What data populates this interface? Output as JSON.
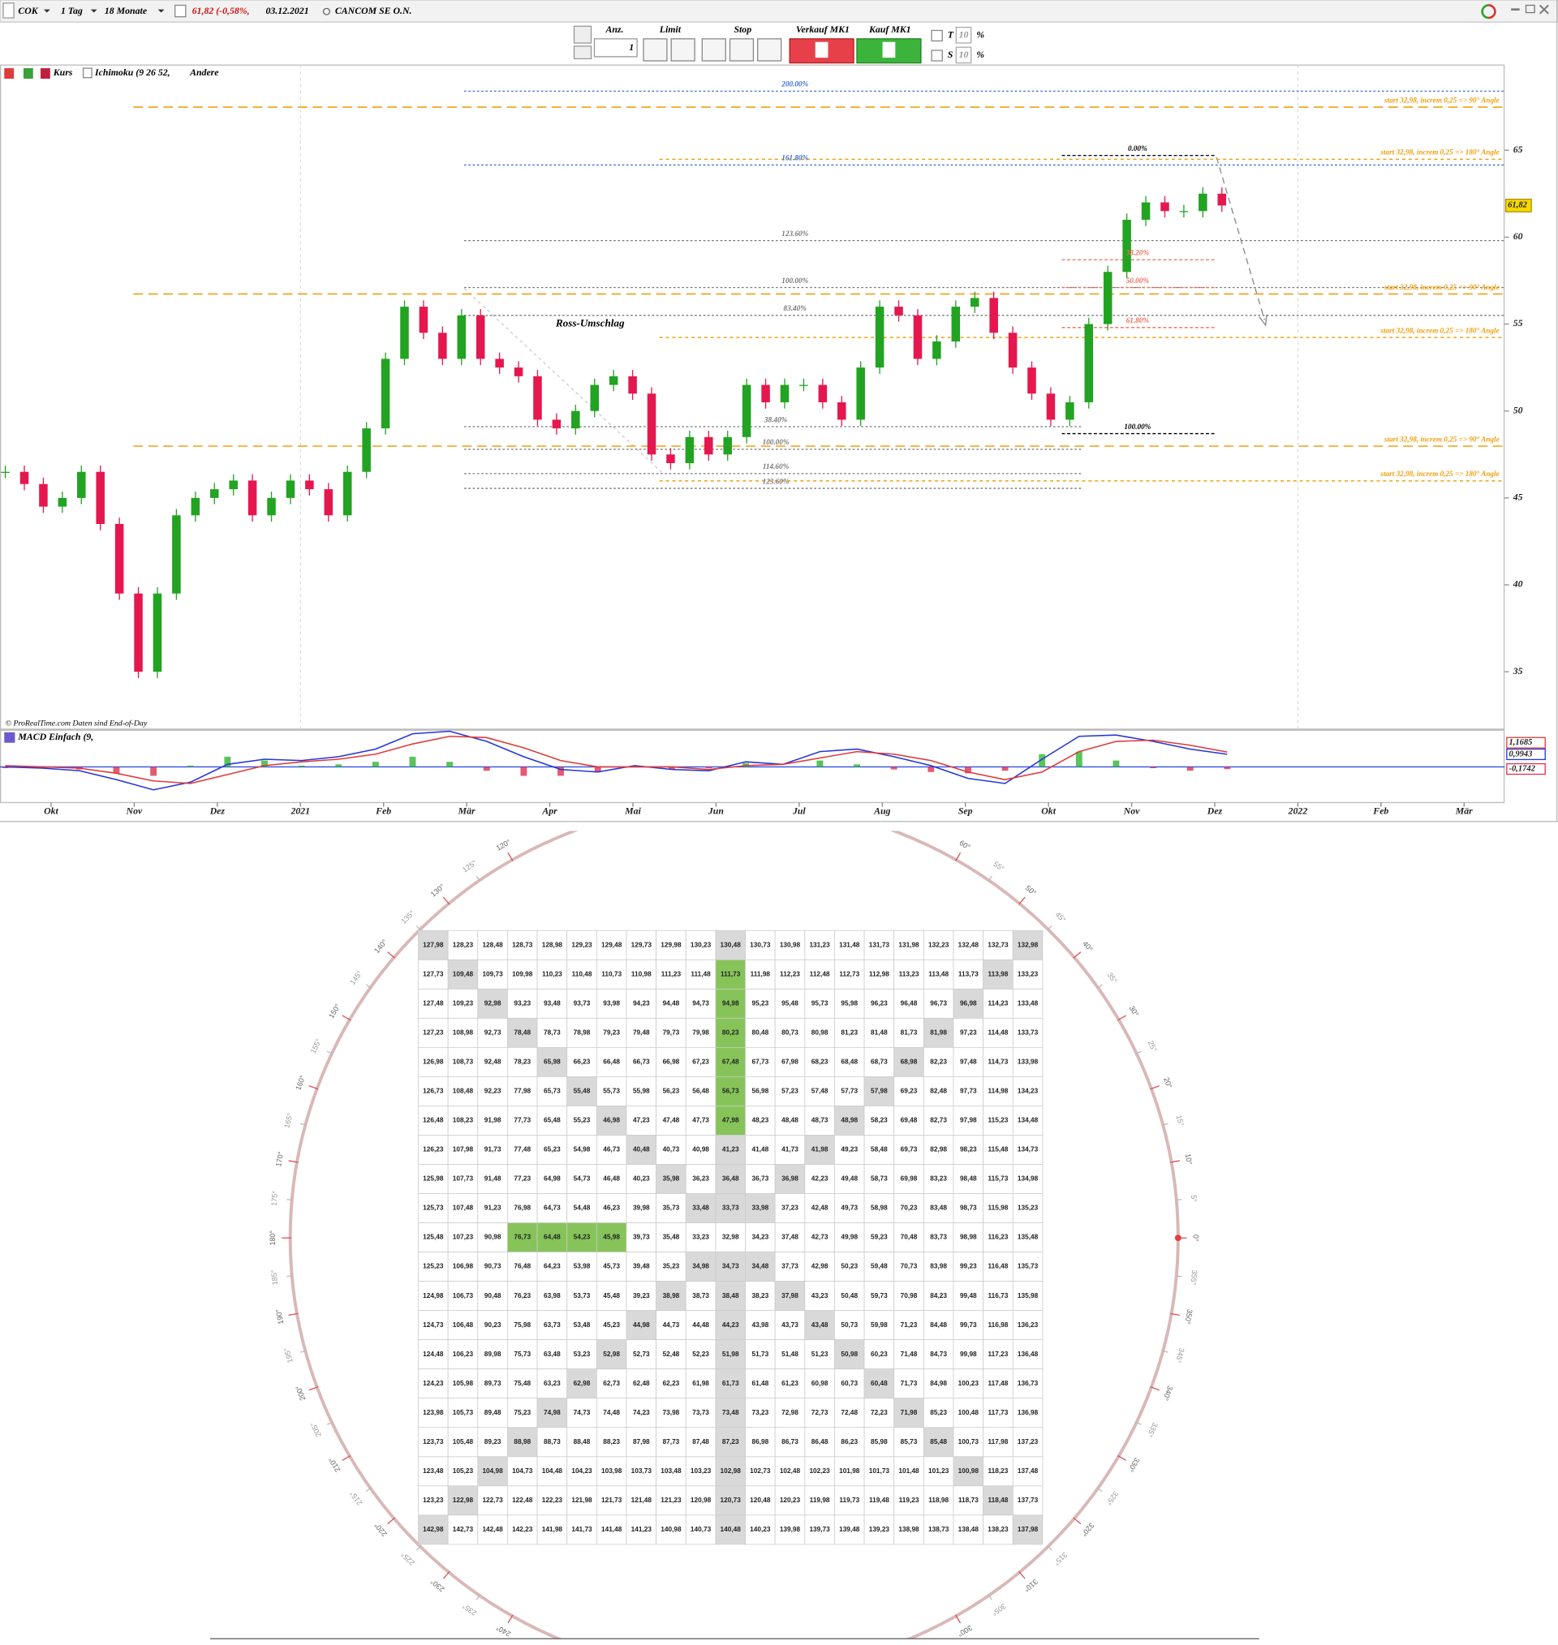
{
  "toolbar": {
    "symbol": "COK",
    "interval": "1 Tag",
    "period": "18 Monate",
    "change": "61,82 (-0,58%,",
    "date": "03.12.2021",
    "name": "CANCOM SE O.N."
  },
  "order_panel": {
    "qty_label": "Anz.",
    "qty": 1,
    "limit": "Limit",
    "stop": "Stop",
    "sell": "Verkauf MK1",
    "buy": "Kauf MK1",
    "t": "T",
    "t_value": 10,
    "t_unit": "%",
    "s": "S",
    "s_value": 10,
    "s_unit": "%"
  },
  "chart_data": [
    {
      "type": "candlestick",
      "legend": [
        "Kurs",
        "Ichimoku (9 26 52,",
        "Andere"
      ],
      "values": [
        46.5,
        45.8,
        44.5,
        45.0,
        46.5,
        43.5,
        39.5,
        35.0,
        39.5,
        44.0,
        45.0,
        45.5,
        46.0,
        44.0,
        45.0,
        46.0,
        45.5,
        44.0,
        46.5,
        49.0,
        53.0,
        56.0,
        54.5,
        53.0,
        55.5,
        53.0,
        52.5,
        52.0,
        49.5,
        49.0,
        50.0,
        51.5,
        52.0,
        51.0,
        47.5,
        47.0,
        48.5,
        47.5,
        48.5,
        51.5,
        50.5,
        51.5,
        51.5,
        50.5,
        49.5,
        52.5,
        56.0,
        55.5,
        53.0,
        54.0,
        56.0,
        56.5,
        54.5,
        52.5,
        51.0,
        49.5,
        50.5,
        55.0,
        58.0,
        61.0,
        62.0,
        61.5,
        61.5,
        62.5,
        61.82
      ],
      "up_color": "#22a322",
      "down_color": "#e5174f",
      "ylim": [
        31.7,
        69.9
      ],
      "yticks": [
        35,
        40,
        45,
        50,
        55,
        60,
        65
      ],
      "xlim": [
        "2020-09",
        "2022-03"
      ],
      "xticks": [
        {
          "value": "2020-10",
          "label": "Okt"
        },
        {
          "value": "2020-11",
          "label": "Nov"
        },
        {
          "value": "2020-12",
          "label": "Dez"
        },
        {
          "value": "2021-01",
          "label": "2021"
        },
        {
          "value": "2021-02",
          "label": "Feb"
        },
        {
          "value": "2021-03",
          "label": "Mär"
        },
        {
          "value": "2021-04",
          "label": "Apr"
        },
        {
          "value": "2021-05",
          "label": "Mai"
        },
        {
          "value": "2021-06",
          "label": "Jun"
        },
        {
          "value": "2021-07",
          "label": "Jul"
        },
        {
          "value": "2021-08",
          "label": "Aug"
        },
        {
          "value": "2021-09",
          "label": "Sep"
        },
        {
          "value": "2021-10",
          "label": "Okt"
        },
        {
          "value": "2021-11",
          "label": "Nov"
        },
        {
          "value": "2021-12",
          "label": "Dez"
        },
        {
          "value": "2022-01",
          "label": "2022"
        },
        {
          "value": "2022-02",
          "label": "Feb"
        },
        {
          "value": "2022-03",
          "label": "Mär"
        }
      ],
      "last_label": "61,82",
      "annotation": "Ross-Umschlag",
      "source": "© ProRealTime.com  Daten sind End-of-Day",
      "fib_a": [
        {
          "value": 68.4,
          "label": "200.00%",
          "color": "#3b6fd6"
        },
        {
          "value": 64.15,
          "label": "161.80%",
          "color": "#3b6fd6"
        },
        {
          "value": 59.8,
          "label": "123.60%",
          "color": "#777777"
        },
        {
          "value": 57.1,
          "label": "100.00%",
          "color": "#777777"
        },
        {
          "value": 55.5,
          "label": "83.40%",
          "color": "#777777"
        }
      ],
      "fib_b": [
        {
          "value": 49.1,
          "label": "38.40%",
          "color": "#777777"
        },
        {
          "value": 47.8,
          "label": "100.00%",
          "color": "#777777"
        },
        {
          "value": 46.4,
          "label": "114.60%",
          "color": "#777777"
        },
        {
          "value": 45.55,
          "label": "123.60%",
          "color": "#777777"
        }
      ],
      "fib_c": [
        {
          "value": 64.7,
          "label": "0.00%",
          "color": "#000000"
        },
        {
          "value": 58.7,
          "label": "38.20%",
          "color": "#e8705a"
        },
        {
          "value": 57.1,
          "label": "50.00%",
          "color": "#e8705a"
        },
        {
          "value": 54.8,
          "label": "61.80%",
          "color": "#e8705a"
        },
        {
          "value": 48.7,
          "label": "100.00%",
          "color": "#000000"
        }
      ],
      "level_color": "#f0a010",
      "gann_levels": [
        {
          "value": 67.48,
          "label": "start 32,98, increm 0,25 => 90° Angle"
        },
        {
          "value": 64.48,
          "label": "start 32,98, increm 0,25 => 180° Angle"
        },
        {
          "value": 56.73,
          "label": "start 32,98, increm 0,25 => 90° Angle"
        },
        {
          "value": 54.23,
          "label": "start 32,98, increm 0,25 => 180° Angle"
        },
        {
          "value": 47.98,
          "label": "start 32,98, increm 0,25 => 90° Angle"
        },
        {
          "value": 45.98,
          "label": "start 32,98, increm 0,25 => 180° Angle"
        }
      ]
    },
    {
      "type": "macd",
      "title": "MACD Einfach (9,",
      "ylim": [
        -2.8,
        2.8
      ],
      "hist_label": "-0,1742",
      "hist_up": "#2fb52f",
      "hist_down": "#e03050",
      "series": [
        {
          "color": "#2436d8",
          "last_label": "0,9943",
          "values": [
            0,
            -0.1,
            -0.3,
            -1.0,
            -1.8,
            -1.2,
            0.2,
            0.6,
            0.5,
            0.8,
            1.4,
            2.6,
            2.8,
            2.0,
            0.8,
            -0.2,
            -0.4,
            0.1,
            -0.2,
            -0.3,
            0.4,
            0.2,
            1.2,
            1.4,
            0.8,
            0.1,
            -0.9,
            -1.3,
            0.6,
            2.4,
            2.5,
            2.0,
            1.4,
            0.9943
          ]
        },
        {
          "color": "#e03a3a",
          "last_label": "1,1685",
          "values": [
            0.1,
            0,
            -0.1,
            -0.5,
            -1.1,
            -1.3,
            -0.6,
            0.1,
            0.4,
            0.6,
            1.0,
            1.8,
            2.4,
            2.3,
            1.5,
            0.5,
            0,
            0,
            0,
            -0.2,
            0.1,
            0.2,
            0.7,
            1.2,
            1.0,
            0.5,
            -0.4,
            -1.0,
            -0.4,
            1.2,
            2.0,
            2.1,
            1.7,
            1.1685
          ]
        }
      ]
    }
  ],
  "gann": {
    "angles": [
      {
        "value": 0,
        "label": "0°"
      },
      {
        "value": 5,
        "label": "5°"
      },
      {
        "value": 10,
        "label": "10°"
      },
      {
        "value": 15,
        "label": "15°"
      },
      {
        "value": 20,
        "label": "20°"
      },
      {
        "value": 25,
        "label": "25°"
      },
      {
        "value": 30,
        "label": "30°"
      },
      {
        "value": 35,
        "label": "35°"
      },
      {
        "value": 40,
        "label": "40°"
      },
      {
        "value": 45,
        "label": "45°"
      },
      {
        "value": 50,
        "label": "50°"
      },
      {
        "value": 55,
        "label": "55°"
      },
      {
        "value": 60,
        "label": "60°"
      },
      {
        "value": 120,
        "label": "120°"
      },
      {
        "value": 125,
        "label": "125°"
      },
      {
        "value": 130,
        "label": "130°"
      },
      {
        "value": 135,
        "label": "135°"
      },
      {
        "value": 140,
        "label": "140°"
      },
      {
        "value": 145,
        "label": "145°"
      },
      {
        "value": 150,
        "label": "150°"
      },
      {
        "value": 155,
        "label": "155°"
      },
      {
        "value": 160,
        "label": "160°"
      },
      {
        "value": 165,
        "label": "165°"
      },
      {
        "value": 170,
        "label": "170°"
      },
      {
        "value": 175,
        "label": "175°"
      },
      {
        "value": 180,
        "label": "180°"
      },
      {
        "value": 185,
        "label": "185°"
      },
      {
        "value": 190,
        "label": "190°"
      },
      {
        "value": 195,
        "label": "195°"
      },
      {
        "value": 200,
        "label": "200°"
      },
      {
        "value": 205,
        "label": "205°"
      },
      {
        "value": 210,
        "label": "210°"
      },
      {
        "value": 215,
        "label": "215°"
      },
      {
        "value": 220,
        "label": "220°"
      },
      {
        "value": 225,
        "label": "225°"
      },
      {
        "value": 230,
        "label": "230°"
      },
      {
        "value": 235,
        "label": "235°"
      },
      {
        "value": 240,
        "label": "240°"
      },
      {
        "value": 300,
        "label": "300°"
      },
      {
        "value": 305,
        "label": "305°"
      },
      {
        "value": 310,
        "label": "310°"
      },
      {
        "value": 315,
        "label": "315°"
      },
      {
        "value": 320,
        "label": "320°"
      },
      {
        "value": 325,
        "label": "325°"
      },
      {
        "value": 330,
        "label": "330°"
      },
      {
        "value": 335,
        "label": "335°"
      },
      {
        "value": 340,
        "label": "340°"
      },
      {
        "value": 345,
        "label": "345°"
      },
      {
        "value": 350,
        "label": "350°"
      },
      {
        "value": 355,
        "label": "355°"
      }
    ],
    "grid": [
      [
        "127,98",
        "128,23",
        "128,48",
        "128,73",
        "128,98",
        "129,23",
        "129,48",
        "129,73",
        "129,98",
        "130,23",
        "130,48",
        "130,73",
        "130,98",
        "131,23",
        "131,48",
        "131,73",
        "131,98",
        "132,23",
        "132,48",
        "132,73",
        "132,98"
      ],
      [
        "127,73",
        "109,48",
        "109,73",
        "109,98",
        "110,23",
        "110,48",
        "110,73",
        "110,98",
        "111,23",
        "111,48",
        "111,73",
        "111,98",
        "112,23",
        "112,48",
        "112,73",
        "112,98",
        "113,23",
        "113,48",
        "113,73",
        "113,98",
        "133,23"
      ],
      [
        "127,48",
        "109,23",
        "92,98",
        "93,23",
        "93,48",
        "93,73",
        "93,98",
        "94,23",
        "94,48",
        "94,73",
        "94,98",
        "95,23",
        "95,48",
        "95,73",
        "95,98",
        "96,23",
        "96,48",
        "96,73",
        "96,98",
        "114,23",
        "133,48"
      ],
      [
        "127,23",
        "108,98",
        "92,73",
        "78,48",
        "78,73",
        "78,98",
        "79,23",
        "79,48",
        "79,73",
        "79,98",
        "80,23",
        "80,48",
        "80,73",
        "80,98",
        "81,23",
        "81,48",
        "81,73",
        "81,98",
        "97,23",
        "114,48",
        "133,73"
      ],
      [
        "126,98",
        "108,73",
        "92,48",
        "78,23",
        "65,98",
        "66,23",
        "66,48",
        "66,73",
        "66,98",
        "67,23",
        "67,48",
        "67,73",
        "67,98",
        "68,23",
        "68,48",
        "68,73",
        "68,98",
        "82,23",
        "97,48",
        "114,73",
        "133,98"
      ],
      [
        "126,73",
        "108,48",
        "92,23",
        "77,98",
        "65,73",
        "55,48",
        "55,73",
        "55,98",
        "56,23",
        "56,48",
        "56,73",
        "56,98",
        "57,23",
        "57,48",
        "57,73",
        "57,98",
        "69,23",
        "82,48",
        "97,73",
        "114,98",
        "134,23"
      ],
      [
        "126,48",
        "108,23",
        "91,98",
        "77,73",
        "65,48",
        "55,23",
        "46,98",
        "47,23",
        "47,48",
        "47,73",
        "47,98",
        "48,23",
        "48,48",
        "48,73",
        "48,98",
        "58,23",
        "69,48",
        "82,73",
        "97,98",
        "115,23",
        "134,48"
      ],
      [
        "126,23",
        "107,98",
        "91,73",
        "77,48",
        "65,23",
        "54,98",
        "46,73",
        "40,48",
        "40,73",
        "40,98",
        "41,23",
        "41,48",
        "41,73",
        "41,98",
        "49,23",
        "58,48",
        "69,73",
        "82,98",
        "98,23",
        "115,48",
        "134,73"
      ],
      [
        "125,98",
        "107,73",
        "91,48",
        "77,23",
        "64,98",
        "54,73",
        "46,48",
        "40,23",
        "35,98",
        "36,23",
        "36,48",
        "36,73",
        "36,98",
        "42,23",
        "49,48",
        "58,73",
        "69,98",
        "83,23",
        "98,48",
        "115,73",
        "134,98"
      ],
      [
        "125,73",
        "107,48",
        "91,23",
        "76,98",
        "64,73",
        "54,48",
        "46,23",
        "39,98",
        "35,73",
        "33,48",
        "33,73",
        "33,98",
        "37,23",
        "42,48",
        "49,73",
        "58,98",
        "70,23",
        "83,48",
        "98,73",
        "115,98",
        "135,23"
      ],
      [
        "125,48",
        "107,23",
        "90,98",
        "76,73",
        "64,48",
        "54,23",
        "45,98",
        "39,73",
        "35,48",
        "33,23",
        "32,98",
        "34,23",
        "37,48",
        "42,73",
        "49,98",
        "59,23",
        "70,48",
        "83,73",
        "98,98",
        "116,23",
        "135,48"
      ],
      [
        "125,23",
        "106,98",
        "90,73",
        "76,48",
        "64,23",
        "53,98",
        "45,73",
        "39,48",
        "35,23",
        "34,98",
        "34,73",
        "34,48",
        "37,73",
        "42,98",
        "50,23",
        "59,48",
        "70,73",
        "83,98",
        "99,23",
        "116,48",
        "135,73"
      ],
      [
        "124,98",
        "106,73",
        "90,48",
        "76,23",
        "63,98",
        "53,73",
        "45,48",
        "39,23",
        "38,98",
        "38,73",
        "38,48",
        "38,23",
        "37,98",
        "43,23",
        "50,48",
        "59,73",
        "70,98",
        "84,23",
        "99,48",
        "116,73",
        "135,98"
      ],
      [
        "124,73",
        "106,48",
        "90,23",
        "75,98",
        "63,73",
        "53,48",
        "45,23",
        "44,98",
        "44,73",
        "44,48",
        "44,23",
        "43,98",
        "43,73",
        "43,48",
        "50,73",
        "59,98",
        "71,23",
        "84,48",
        "99,73",
        "116,98",
        "136,23"
      ],
      [
        "124,48",
        "106,23",
        "89,98",
        "75,73",
        "63,48",
        "53,23",
        "52,98",
        "52,73",
        "52,48",
        "52,23",
        "51,98",
        "51,73",
        "51,48",
        "51,23",
        "50,98",
        "60,23",
        "71,48",
        "84,73",
        "99,98",
        "117,23",
        "136,48"
      ],
      [
        "124,23",
        "105,98",
        "89,73",
        "75,48",
        "63,23",
        "62,98",
        "62,73",
        "62,48",
        "62,23",
        "61,98",
        "61,73",
        "61,48",
        "61,23",
        "60,98",
        "60,73",
        "60,48",
        "71,73",
        "84,98",
        "100,23",
        "117,48",
        "136,73"
      ],
      [
        "123,98",
        "105,73",
        "89,48",
        "75,23",
        "74,98",
        "74,73",
        "74,48",
        "74,23",
        "73,98",
        "73,73",
        "73,48",
        "73,23",
        "72,98",
        "72,73",
        "72,48",
        "72,23",
        "71,98",
        "85,23",
        "100,48",
        "117,73",
        "136,98"
      ],
      [
        "123,73",
        "105,48",
        "89,23",
        "88,98",
        "88,73",
        "88,48",
        "88,23",
        "87,98",
        "87,73",
        "87,48",
        "87,23",
        "86,98",
        "86,73",
        "86,48",
        "86,23",
        "85,98",
        "85,73",
        "85,48",
        "100,73",
        "117,98",
        "137,23"
      ],
      [
        "123,48",
        "105,23",
        "104,98",
        "104,73",
        "104,48",
        "104,23",
        "103,98",
        "103,73",
        "103,48",
        "103,23",
        "102,98",
        "102,73",
        "102,48",
        "102,23",
        "101,98",
        "101,73",
        "101,48",
        "101,23",
        "100,98",
        "118,23",
        "137,48"
      ],
      [
        "123,23",
        "122,98",
        "122,73",
        "122,48",
        "122,23",
        "121,98",
        "121,73",
        "121,48",
        "121,23",
        "120,98",
        "120,73",
        "120,48",
        "120,23",
        "119,98",
        "119,73",
        "119,48",
        "119,23",
        "118,98",
        "118,73",
        "118,48",
        "137,73"
      ],
      [
        "142,98",
        "142,73",
        "142,48",
        "142,23",
        "141,98",
        "141,73",
        "141,48",
        "141,23",
        "140,98",
        "140,73",
        "140,48",
        "140,23",
        "139,98",
        "139,73",
        "139,48",
        "139,23",
        "138,98",
        "138,73",
        "138,48",
        "138,23",
        "137,98"
      ]
    ]
  }
}
